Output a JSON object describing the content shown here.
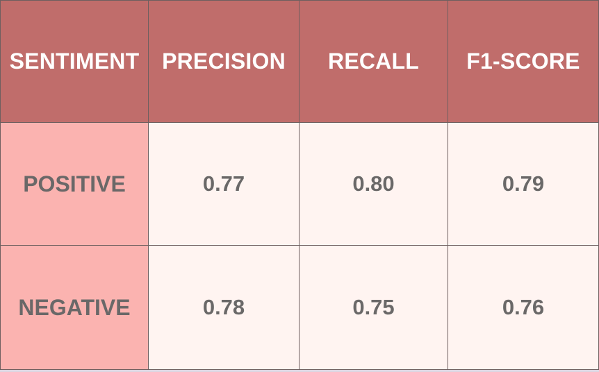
{
  "chart_data": {
    "type": "table",
    "columns": [
      "SENTIMENT",
      "PRECISION",
      "RECALL",
      "F1-SCORE"
    ],
    "rows": [
      {
        "label": "POSITIVE",
        "values": [
          "0.77",
          "0.80",
          "0.79"
        ]
      },
      {
        "label": "NEGATIVE",
        "values": [
          "0.78",
          "0.75",
          "0.76"
        ]
      }
    ]
  },
  "colors": {
    "header_bg": "#c06d6b",
    "row_label_bg": "#fbb3b0",
    "cell_bg": "#fff4f1",
    "header_text": "#ffffff",
    "body_text": "#6a6868",
    "border": "#6e5f5f"
  }
}
